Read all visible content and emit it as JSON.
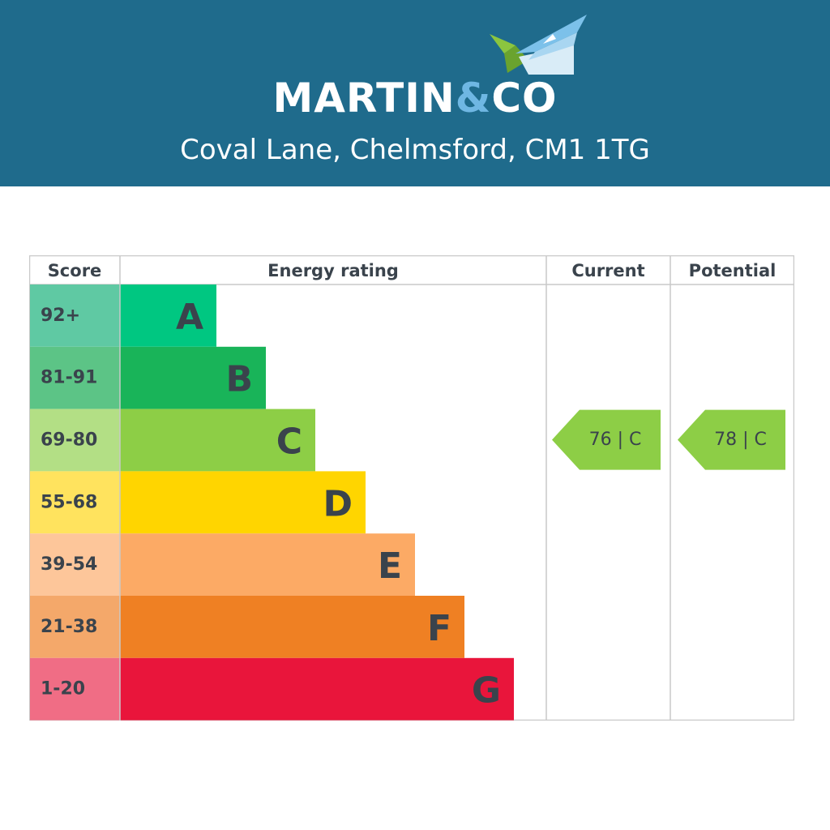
{
  "header": {
    "brand_left": "MARTIN",
    "brand_amp": "&",
    "brand_right": "CO",
    "address": "Coval Lane, Chelmsford, CM1 1TG",
    "logo_icon": "house-roof-icon",
    "background": "#1f6b8c"
  },
  "chart_data": {
    "type": "table",
    "columns": [
      "Score",
      "Energy rating",
      "Current",
      "Potential"
    ],
    "bands": [
      {
        "score": "92+",
        "letter": "A",
        "color": "#00c781",
        "score_color": "#5fc9a3"
      },
      {
        "score": "81-91",
        "letter": "B",
        "color": "#19b459",
        "score_color": "#5cc486"
      },
      {
        "score": "69-80",
        "letter": "C",
        "color": "#8dce46",
        "score_color": "#b3df85"
      },
      {
        "score": "55-68",
        "letter": "D",
        "color": "#ffd500",
        "score_color": "#ffe35e"
      },
      {
        "score": "39-54",
        "letter": "E",
        "color": "#fcaa65",
        "score_color": "#fdc69a"
      },
      {
        "score": "21-38",
        "letter": "F",
        "color": "#ef8023",
        "score_color": "#f4a86a"
      },
      {
        "score": "1-20",
        "letter": "G",
        "color": "#e9153b",
        "score_color": "#f06d85"
      }
    ],
    "current": {
      "label": "76 | C",
      "value": 76,
      "band": "C",
      "color": "#8dce46"
    },
    "potential": {
      "label": "78 | C",
      "value": 78,
      "band": "C",
      "color": "#8dce46"
    }
  }
}
